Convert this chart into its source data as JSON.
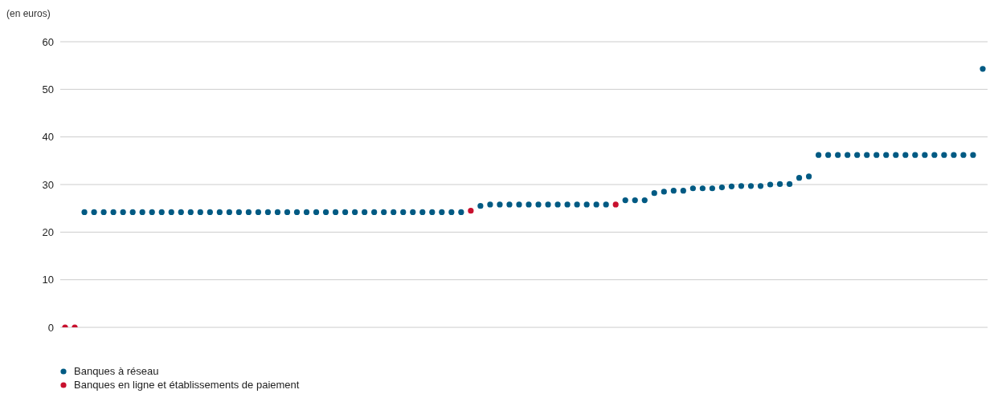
{
  "chart_data": {
    "type": "scatter",
    "ylabel": "(en euros)",
    "categories": [
      null,
      null,
      null,
      null,
      null,
      null,
      null,
      null,
      null,
      null,
      null,
      null,
      null,
      null,
      null,
      null,
      null,
      null,
      null,
      null,
      null,
      null,
      null,
      null,
      null,
      null,
      null,
      null,
      null,
      null,
      null,
      null,
      null,
      null,
      null,
      null,
      null,
      null,
      null,
      null,
      null,
      null,
      null,
      null,
      null,
      null,
      null,
      null,
      null,
      null,
      null,
      null,
      null,
      null,
      null,
      null,
      null,
      null,
      null,
      null,
      null,
      null,
      null,
      null,
      null,
      null,
      null,
      null,
      null,
      null,
      null,
      null,
      null,
      null,
      null,
      null,
      null,
      null,
      null,
      null,
      null,
      null,
      null,
      null,
      null,
      null,
      null,
      null,
      null,
      null,
      null,
      null,
      null,
      null,
      null,
      null
    ],
    "series": [
      {
        "name": "Banques à réseau",
        "color": "#005a83",
        "values": [
          null,
          null,
          24.2,
          24.2,
          24.2,
          24.2,
          24.2,
          24.2,
          24.2,
          24.2,
          24.2,
          24.2,
          24.2,
          24.2,
          24.2,
          24.2,
          24.2,
          24.2,
          24.2,
          24.2,
          24.2,
          24.2,
          24.2,
          24.2,
          24.2,
          24.2,
          24.2,
          24.2,
          24.2,
          24.2,
          24.2,
          24.2,
          24.2,
          24.2,
          24.2,
          24.2,
          24.2,
          24.2,
          24.2,
          24.2,
          24.2,
          24.2,
          null,
          25.5,
          25.8,
          25.8,
          25.8,
          25.8,
          25.8,
          25.8,
          25.8,
          25.8,
          25.8,
          25.8,
          25.8,
          25.8,
          25.8,
          null,
          26.7,
          26.7,
          26.7,
          28.2,
          28.5,
          28.7,
          28.7,
          29.2,
          29.2,
          29.2,
          29.4,
          29.6,
          29.7,
          29.7,
          29.7,
          30.0,
          30.1,
          30.1,
          31.4,
          31.7,
          36.2,
          36.2,
          36.2,
          36.2,
          36.2,
          36.2,
          36.2,
          36.2,
          36.2,
          36.2,
          36.2,
          36.2,
          36.2,
          36.2,
          36.2,
          36.2,
          36.2,
          54.3
        ]
      },
      {
        "name": "Banques en ligne et établissements de paiement",
        "color": "#c8102e",
        "values": [
          0,
          0,
          null,
          null,
          null,
          null,
          null,
          null,
          null,
          null,
          null,
          null,
          null,
          null,
          null,
          null,
          null,
          null,
          null,
          null,
          null,
          null,
          null,
          null,
          null,
          null,
          null,
          null,
          null,
          null,
          null,
          null,
          null,
          null,
          null,
          null,
          null,
          null,
          null,
          null,
          null,
          null,
          24.5,
          null,
          null,
          null,
          null,
          null,
          null,
          null,
          null,
          null,
          null,
          null,
          null,
          null,
          null,
          25.8,
          null,
          null,
          null,
          null,
          null,
          null,
          null,
          null,
          null,
          null,
          null,
          null,
          null,
          null,
          null,
          null,
          null,
          null,
          null,
          null,
          null,
          null,
          null,
          null,
          null,
          null,
          null,
          null,
          null,
          null,
          null,
          null,
          null,
          null,
          null,
          null,
          null,
          null
        ]
      }
    ],
    "ylim": [
      0,
      60
    ],
    "yticks": [
      0,
      10,
      20,
      30,
      40,
      50,
      60
    ],
    "grid": "y",
    "legend": "bottom left",
    "tick_labels": "y",
    "marker": "circle"
  }
}
